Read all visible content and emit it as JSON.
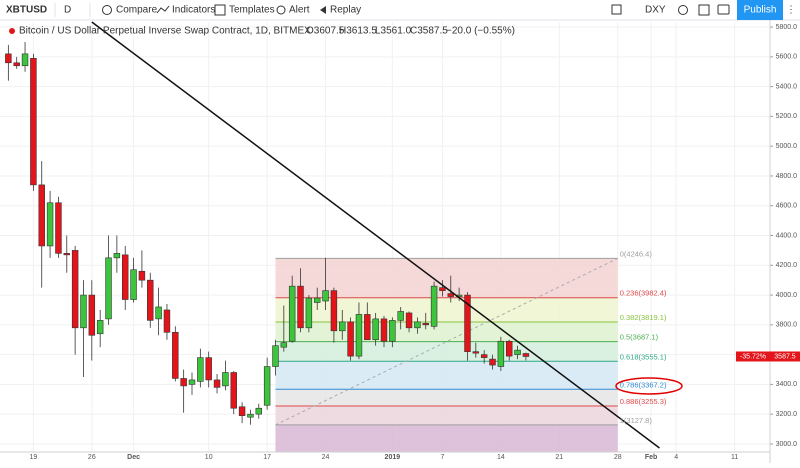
{
  "toolbar": {
    "symbol": "XBTUSD",
    "interval": "D",
    "buttons": [
      "Compare",
      "Indicators",
      "Templates",
      "Alert",
      "Replay"
    ],
    "compare_symbol": "DXY",
    "publish": "Publish"
  },
  "chart_data": {
    "type": "candlestick",
    "title": "Bitcoin / US Dollar Perpetual Inverse Swap Contract, 1D, BITMEX",
    "legend_values": [
      "O3607.5",
      "H3613.5",
      "L3561.0",
      "C3587.5",
      "−20.0 (−0.55%)"
    ],
    "up_color": "#3cc43c",
    "down_color": "#e3151b",
    "x": [
      "2018-11-16",
      "2018-11-17",
      "2018-11-18",
      "2018-11-19",
      "2018-11-20",
      "2018-11-21",
      "2018-11-22",
      "2018-11-23",
      "2018-11-24",
      "2018-11-25",
      "2018-11-26",
      "2018-11-27",
      "2018-11-28",
      "2018-11-29",
      "2018-11-30",
      "2018-12-01",
      "2018-12-02",
      "2018-12-03",
      "2018-12-04",
      "2018-12-05",
      "2018-12-06",
      "2018-12-07",
      "2018-12-08",
      "2018-12-09",
      "2018-12-10",
      "2018-12-11",
      "2018-12-12",
      "2018-12-13",
      "2018-12-14",
      "2018-12-15",
      "2018-12-16",
      "2018-12-17",
      "2018-12-18",
      "2018-12-19",
      "2018-12-20",
      "2018-12-21",
      "2018-12-22",
      "2018-12-23",
      "2018-12-24",
      "2018-12-25",
      "2018-12-26",
      "2018-12-27",
      "2018-12-28",
      "2018-12-29",
      "2018-12-30",
      "2018-12-31",
      "2019-01-01",
      "2019-01-02",
      "2019-01-03",
      "2019-01-04",
      "2019-01-05",
      "2019-01-06",
      "2019-01-07",
      "2019-01-08",
      "2019-01-09",
      "2019-01-10",
      "2019-01-11",
      "2019-01-12",
      "2019-01-13",
      "2019-01-14",
      "2019-01-15",
      "2019-01-16",
      "2019-01-17"
    ],
    "open": [
      5620,
      5560,
      5540,
      5590,
      4740,
      4330,
      4620,
      4280,
      4300,
      3780,
      4000,
      3740,
      3840,
      4250,
      4270,
      3970,
      4160,
      4100,
      3840,
      3900,
      3750,
      3440,
      3400,
      3420,
      3580,
      3430,
      3390,
      3480,
      3250,
      3180,
      3200,
      3260,
      3520,
      3650,
      3690,
      4060,
      3780,
      3950,
      3960,
      4030,
      3760,
      3820,
      3590,
      3870,
      3700,
      3840,
      3690,
      3830,
      3880,
      3780,
      3810,
      3790,
      4050,
      4010,
      3990,
      4000,
      3620,
      3600,
      3570,
      3520,
      3690,
      3600,
      3607.5
    ],
    "high": [
      5680,
      5600,
      5700,
      5620,
      4900,
      4700,
      4660,
      4400,
      4330,
      4100,
      4100,
      3900,
      4400,
      4400,
      4330,
      4250,
      4300,
      4150,
      4050,
      3940,
      3790,
      3500,
      3480,
      3640,
      3620,
      3470,
      3560,
      3490,
      3280,
      3230,
      3270,
      3580,
      3700,
      3930,
      4130,
      4180,
      4000,
      4050,
      4250,
      4050,
      3900,
      3850,
      3950,
      3950,
      3880,
      3860,
      3850,
      3920,
      3890,
      3850,
      3880,
      4090,
      4100,
      4130,
      4050,
      4020,
      3680,
      3630,
      3600,
      3720,
      3700,
      3660,
      3613.5
    ],
    "low": [
      5440,
      5520,
      5500,
      4700,
      4050,
      4250,
      4250,
      4150,
      3600,
      3450,
      3560,
      3650,
      3800,
      4150,
      3900,
      3950,
      4050,
      3780,
      3730,
      3700,
      3420,
      3210,
      3330,
      3380,
      3380,
      3340,
      3360,
      3200,
      3140,
      3130,
      3170,
      3230,
      3460,
      3620,
      3680,
      3750,
      3750,
      3900,
      3900,
      3680,
      3700,
      3560,
      3570,
      3700,
      3660,
      3650,
      3650,
      3770,
      3750,
      3740,
      3770,
      3770,
      3990,
      3950,
      3960,
      3560,
      3580,
      3540,
      3500,
      3490,
      3560,
      3570,
      3561.0
    ],
    "close": [
      5560,
      5540,
      5620,
      4740,
      4330,
      4620,
      4280,
      4270,
      3780,
      4000,
      3730,
      3830,
      4250,
      4280,
      3970,
      4170,
      4100,
      3830,
      3920,
      3750,
      3440,
      3390,
      3430,
      3580,
      3430,
      3380,
      3480,
      3240,
      3190,
      3200,
      3240,
      3520,
      3660,
      3680,
      4060,
      3780,
      3980,
      3980,
      4030,
      3760,
      3820,
      3590,
      3870,
      3700,
      3840,
      3690,
      3830,
      3890,
      3780,
      3820,
      3800,
      4060,
      4030,
      3990,
      4000,
      3620,
      3610,
      3580,
      3530,
      3690,
      3590,
      3630,
      3587.5
    ],
    "xlim": [
      "2018-11-15",
      "2019-02-15"
    ],
    "xticks": [
      {
        "value": "2018-11-19",
        "label": "19"
      },
      {
        "value": "2018-11-26",
        "label": "26"
      },
      {
        "value": "2018-12-01",
        "label": "Dec"
      },
      {
        "value": "2018-12-10",
        "label": "10"
      },
      {
        "value": "2018-12-17",
        "label": "17"
      },
      {
        "value": "2018-12-24",
        "label": "24"
      },
      {
        "value": "2019-01-01",
        "label": "2019"
      },
      {
        "value": "2019-01-07",
        "label": "7"
      },
      {
        "value": "2019-01-14",
        "label": "14"
      },
      {
        "value": "2019-01-21",
        "label": "21"
      },
      {
        "value": "2019-01-28",
        "label": "28"
      },
      {
        "value": "2019-02-01",
        "label": "Feb"
      },
      {
        "value": "2019-02-04",
        "label": "4"
      },
      {
        "value": "2019-02-11",
        "label": "11"
      }
    ],
    "ylim": [
      2946,
      5834
    ],
    "yticks": [
      {
        "value": 3000,
        "label": "3000.0"
      },
      {
        "value": 3200,
        "label": "3200.0"
      },
      {
        "value": 3400,
        "label": "3400.0"
      },
      {
        "value": 3600,
        "label": "3600.0"
      },
      {
        "value": 3800,
        "label": "3800.0"
      },
      {
        "value": 4000,
        "label": "4000.0"
      },
      {
        "value": 4200,
        "label": "4200.0"
      },
      {
        "value": 4400,
        "label": "4400.0"
      },
      {
        "value": 4600,
        "label": "4600.0"
      },
      {
        "value": 4800,
        "label": "4800.0"
      },
      {
        "value": 5000,
        "label": "5000.0"
      },
      {
        "value": 5200,
        "label": "5200.0"
      },
      {
        "value": 5400,
        "label": "5400.0"
      },
      {
        "value": 5600,
        "label": "5600.0"
      },
      {
        "value": 5800,
        "label": "5800.0"
      }
    ],
    "grid": true,
    "last_price": 3587.5,
    "last_price_label": "3587.5",
    "change_label": "-35.72%",
    "fibonacci": {
      "start": "2018-12-18",
      "end": "2019-01-28",
      "levels": [
        {
          "ratio": 0,
          "price": 4246.4,
          "label": "0(4246.4)",
          "color": "#9e9e9e",
          "fill": "#f3d2d2"
        },
        {
          "ratio": 0.236,
          "price": 3982.4,
          "label": "0.236(3982.4)",
          "color": "#e04848",
          "fill": "#eef4cf"
        },
        {
          "ratio": 0.382,
          "price": 3819.1,
          "label": "0.382(3819.1)",
          "color": "#86c33c",
          "fill": "#def2cf"
        },
        {
          "ratio": 0.5,
          "price": 3687.1,
          "label": "0.5(3687.1)",
          "color": "#4caf50",
          "fill": "#d4efdc"
        },
        {
          "ratio": 0.618,
          "price": 3555.1,
          "label": "0.618(3555.1)",
          "color": "#2ea884",
          "fill": "#d3e8f3"
        },
        {
          "ratio": 0.786,
          "price": 3367.2,
          "label": "0.786(3367.2)",
          "color": "#2f8ad3",
          "fill": "#e5e5e5"
        },
        {
          "ratio": 0.886,
          "price": 3255.3,
          "label": "0.886(3255.3)",
          "color": "#e04848",
          "fill": "#ebd5dc"
        },
        {
          "ratio": 1,
          "price": 3127.8,
          "label": "1(3127.8)",
          "color": "#9e9e9e",
          "fill": "#d8b6d4"
        }
      ]
    },
    "trendline": {
      "start": [
        "2018-11-26",
        5834
      ],
      "end": [
        "2019-02-02",
        2973
      ],
      "color": "#111111"
    }
  }
}
